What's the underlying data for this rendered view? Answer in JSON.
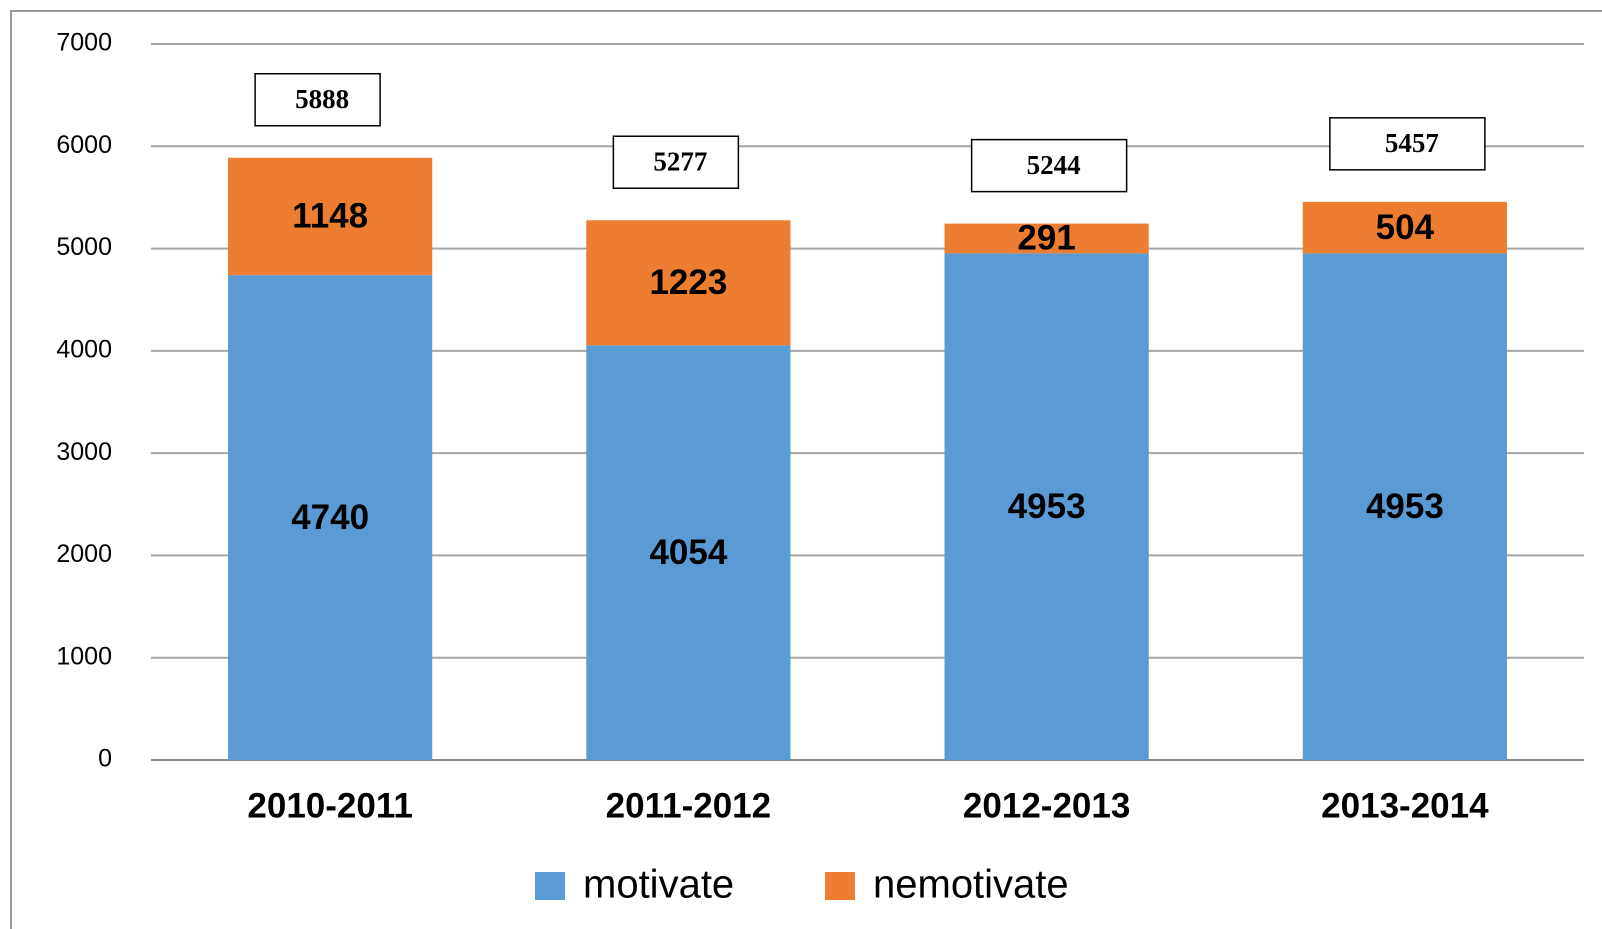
{
  "chart_data": {
    "type": "stacked_bar",
    "categories": [
      "2010-2011",
      "2011-2012",
      "2012-2013",
      "2013-2014"
    ],
    "series": [
      {
        "name": "motivate",
        "color": "#5b9bd5",
        "values": [
          4740,
          4054,
          4953,
          4953
        ]
      },
      {
        "name": "nemotivate",
        "color": "#ed7d31",
        "values": [
          1148,
          1223,
          291,
          504
        ]
      }
    ],
    "totals": [
      5888,
      5277,
      5244,
      5457
    ],
    "ylim": [
      0,
      7000
    ],
    "yticks": [
      0,
      1000,
      2000,
      3000,
      4000,
      5000,
      6000,
      7000
    ],
    "grid": true,
    "legend": "bottom"
  }
}
